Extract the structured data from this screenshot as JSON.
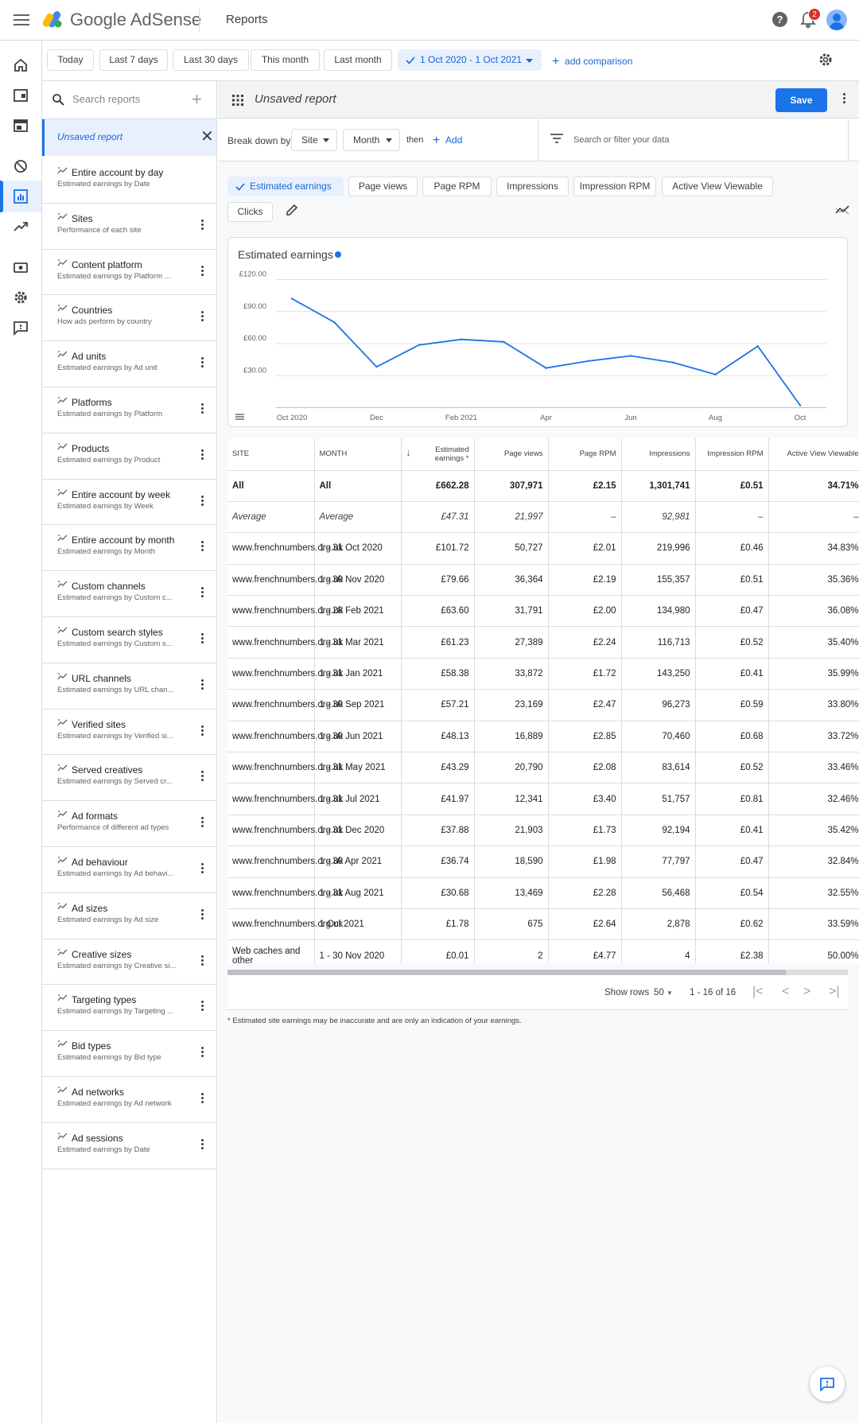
{
  "app": {
    "brand_google": "Google",
    "brand_product": "AdSense",
    "section": "Reports",
    "notification_count": "2"
  },
  "help": {
    "label": "?"
  },
  "date_filters": [
    "Today",
    "Last 7 days",
    "Last 30 days",
    "This month",
    "Last month"
  ],
  "selected_range": "1 Oct 2020 - 1 Oct 2021",
  "add_comparison": "add comparison",
  "sidebar": {
    "search_placeholder": "Search reports",
    "unsaved": "Unsaved report",
    "reports": [
      {
        "title": "Entire account by day",
        "subtitle": "Estimated earnings by Date",
        "menu": false
      },
      {
        "title": "Sites",
        "subtitle": "Performance of each site",
        "menu": true
      },
      {
        "title": "Content platform",
        "subtitle": "Estimated earnings by Platform ...",
        "menu": true
      },
      {
        "title": "Countries",
        "subtitle": "How ads perform by country",
        "menu": true
      },
      {
        "title": "Ad units",
        "subtitle": "Estimated earnings by Ad unit",
        "menu": true
      },
      {
        "title": "Platforms",
        "subtitle": "Estimated earnings by Platform",
        "menu": true
      },
      {
        "title": "Products",
        "subtitle": "Estimated earnings by Product",
        "menu": true
      },
      {
        "title": "Entire account by week",
        "subtitle": "Estimated earnings by Week",
        "menu": true
      },
      {
        "title": "Entire account by month",
        "subtitle": "Estimated earnings by Month",
        "menu": true
      },
      {
        "title": "Custom channels",
        "subtitle": "Estimated earnings by Custom c...",
        "menu": true
      },
      {
        "title": "Custom search styles",
        "subtitle": "Estimated earnings by Custom s...",
        "menu": true
      },
      {
        "title": "URL channels",
        "subtitle": "Estimated earnings by URL chan...",
        "menu": true
      },
      {
        "title": "Verified sites",
        "subtitle": "Estimated earnings by Verified si...",
        "menu": true
      },
      {
        "title": "Served creatives",
        "subtitle": "Estimated earnings by Served cr...",
        "menu": true
      },
      {
        "title": "Ad formats",
        "subtitle": "Performance of different ad types",
        "menu": true
      },
      {
        "title": "Ad behaviour",
        "subtitle": "Estimated earnings by Ad behavi...",
        "menu": true
      },
      {
        "title": "Ad sizes",
        "subtitle": "Estimated earnings by Ad size",
        "menu": true
      },
      {
        "title": "Creative sizes",
        "subtitle": "Estimated earnings by Creative si...",
        "menu": true
      },
      {
        "title": "Targeting types",
        "subtitle": "Estimated earnings by Targeting ...",
        "menu": true
      },
      {
        "title": "Bid types",
        "subtitle": "Estimated earnings by Bid type",
        "menu": true
      },
      {
        "title": "Ad networks",
        "subtitle": "Estimated earnings by Ad network",
        "menu": true
      },
      {
        "title": "Ad sessions",
        "subtitle": "Estimated earnings by Date",
        "menu": true
      }
    ]
  },
  "report": {
    "title": "Unsaved report",
    "save": "Save",
    "breakdown_label": "Break down by",
    "breakdown_1": "Site",
    "breakdown_2": "Month",
    "then": "then",
    "add": "Add",
    "filter_placeholder": "Search or filter your data"
  },
  "metrics": [
    "Estimated earnings",
    "Page views",
    "Page RPM",
    "Impressions",
    "Impression RPM",
    "Active View Viewable",
    "Clicks"
  ],
  "chart_data": {
    "type": "line",
    "title": "Estimated earnings",
    "x_ticks": [
      "Oct 2020",
      "Dec",
      "Feb 2021",
      "Apr",
      "Jun",
      "Aug",
      "Oct"
    ],
    "y_ticks": [
      "£120.00",
      "£90.00",
      "£60.00",
      "£30.00"
    ],
    "ylim": [
      0,
      120
    ],
    "series": [
      {
        "values": [
          {
            "x": "2020-10",
            "y": 101.72
          },
          {
            "x": "2020-11",
            "y": 79.66
          },
          {
            "x": "2020-12",
            "y": 37.88
          },
          {
            "x": "2021-01",
            "y": 58.38
          },
          {
            "x": "2021-02",
            "y": 63.6
          },
          {
            "x": "2021-03",
            "y": 61.23
          },
          {
            "x": "2021-04",
            "y": 36.74
          },
          {
            "x": "2021-05",
            "y": 43.29
          },
          {
            "x": "2021-06",
            "y": 48.13
          },
          {
            "x": "2021-07",
            "y": 41.97
          },
          {
            "x": "2021-08",
            "y": 30.68
          },
          {
            "x": "2021-09",
            "y": 57.21
          },
          {
            "x": "2021-10",
            "y": 1.78
          }
        ]
      }
    ],
    "color": "#1a73e8"
  },
  "table": {
    "columns": [
      "SITE",
      "MONTH",
      "Estimated earnings *",
      "Page views",
      "Page RPM",
      "Impressions",
      "Impression RPM",
      "Active View Viewable"
    ],
    "total": [
      "All",
      "All",
      "£662.28",
      "307,971",
      "£2.15",
      "1,301,741",
      "£0.51",
      "34.71%"
    ],
    "average": [
      "Average",
      "Average",
      "£47.31",
      "21,997",
      "–",
      "92,981",
      "–",
      "–"
    ],
    "rows": [
      [
        "www.frenchnumbers.org.uk",
        "1 - 31 Oct 2020",
        "£101.72",
        "50,727",
        "£2.01",
        "219,996",
        "£0.46",
        "34.83%"
      ],
      [
        "www.frenchnumbers.org.uk",
        "1 - 30 Nov 2020",
        "£79.66",
        "36,364",
        "£2.19",
        "155,357",
        "£0.51",
        "35.36%"
      ],
      [
        "www.frenchnumbers.org.uk",
        "1 - 28 Feb 2021",
        "£63.60",
        "31,791",
        "£2.00",
        "134,980",
        "£0.47",
        "36.08%"
      ],
      [
        "www.frenchnumbers.org.uk",
        "1 - 31 Mar 2021",
        "£61.23",
        "27,389",
        "£2.24",
        "116,713",
        "£0.52",
        "35.40%"
      ],
      [
        "www.frenchnumbers.org.uk",
        "1 - 31 Jan 2021",
        "£58.38",
        "33,872",
        "£1.72",
        "143,250",
        "£0.41",
        "35.99%"
      ],
      [
        "www.frenchnumbers.org.uk",
        "1 - 30 Sep 2021",
        "£57.21",
        "23,169",
        "£2.47",
        "96,273",
        "£0.59",
        "33.80%"
      ],
      [
        "www.frenchnumbers.org.uk",
        "1 - 30 Jun 2021",
        "£48.13",
        "16,889",
        "£2.85",
        "70,460",
        "£0.68",
        "33.72%"
      ],
      [
        "www.frenchnumbers.org.uk",
        "1 - 31 May 2021",
        "£43.29",
        "20,790",
        "£2.08",
        "83,614",
        "£0.52",
        "33.46%"
      ],
      [
        "www.frenchnumbers.org.uk",
        "1 - 31 Jul 2021",
        "£41.97",
        "12,341",
        "£3.40",
        "51,757",
        "£0.81",
        "32.46%"
      ],
      [
        "www.frenchnumbers.org.uk",
        "1 - 31 Dec 2020",
        "£37.88",
        "21,903",
        "£1.73",
        "92,194",
        "£0.41",
        "35.42%"
      ],
      [
        "www.frenchnumbers.org.uk",
        "1 - 30 Apr 2021",
        "£36.74",
        "18,590",
        "£1.98",
        "77,797",
        "£0.47",
        "32.84%"
      ],
      [
        "www.frenchnumbers.org.uk",
        "1 - 31 Aug 2021",
        "£30.68",
        "13,469",
        "£2.28",
        "56,468",
        "£0.54",
        "32.55%"
      ],
      [
        "www.frenchnumbers.org.uk",
        "1 Oct 2021",
        "£1.78",
        "675",
        "£2.64",
        "2,878",
        "£0.62",
        "33.59%"
      ],
      [
        "Web caches and other",
        "1 - 30 Nov 2020",
        "£0.01",
        "2",
        "£4.77",
        "4",
        "£2.38",
        "50.00%"
      ]
    ]
  },
  "pager": {
    "show_rows": "Show rows",
    "rows_value": "50",
    "range": "1 - 16 of 16"
  },
  "footnote": "* Estimated site earnings may be inaccurate and are only an indication of your earnings."
}
